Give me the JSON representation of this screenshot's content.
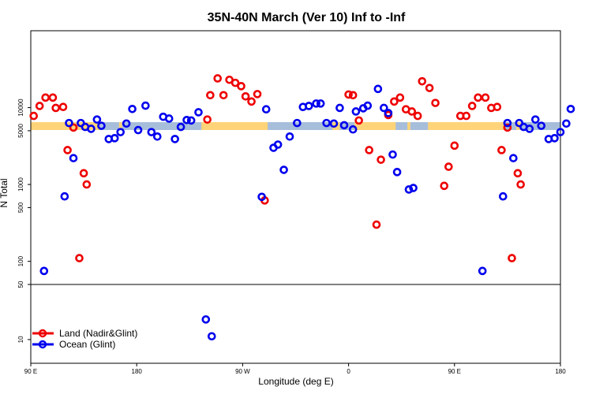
{
  "chart_data": {
    "type": "scatter",
    "title": "35N-40N March (Ver 10)   Inf to -Inf",
    "xlabel": "Longitude (deg E)",
    "ylabel": "N Total",
    "xlim": [
      90,
      450
    ],
    "ylim_upper": [
      50,
      100000
    ],
    "ylim_lower": [
      5,
      50
    ],
    "yscale": "log",
    "x_ticks": [
      {
        "value": 90,
        "label": "90 E"
      },
      {
        "value": 162,
        "label": "180"
      },
      {
        "value": 234,
        "label": "90 W"
      },
      {
        "value": 306,
        "label": "0"
      },
      {
        "value": 378,
        "label": "90 E"
      },
      {
        "value": 450,
        "label": "180"
      }
    ],
    "y_ticks_upper": [
      {
        "value": 50,
        "label": "50"
      },
      {
        "value": 100,
        "label": "100"
      },
      {
        "value": 500,
        "label": "500"
      },
      {
        "value": 1000,
        "label": "1000"
      },
      {
        "value": 5000,
        "label": "5000"
      },
      {
        "value": 10000,
        "label": "10000"
      }
    ],
    "y_ticks_lower": [
      {
        "value": 10,
        "label": "10"
      }
    ],
    "series": [
      {
        "name": "Land (Nadir&Glint)",
        "color": "#ee0000",
        "points": [
          [
            92,
            7800
          ],
          [
            96,
            10500
          ],
          [
            100,
            13500
          ],
          [
            105,
            13500
          ],
          [
            107,
            9900
          ],
          [
            112,
            10200
          ],
          [
            115,
            2800
          ],
          [
            119,
            5500
          ],
          [
            123,
            110
          ],
          [
            126,
            1400
          ],
          [
            128,
            1000
          ],
          [
            210,
            7000
          ],
          [
            212,
            14500
          ],
          [
            217,
            24000
          ],
          [
            221,
            14500
          ],
          [
            225,
            23000
          ],
          [
            229,
            21000
          ],
          [
            233,
            19000
          ],
          [
            236,
            14000
          ],
          [
            240,
            12000
          ],
          [
            244,
            15000
          ],
          [
            249,
            620
          ],
          [
            306,
            14800
          ],
          [
            309,
            14500
          ],
          [
            313,
            6800
          ],
          [
            320,
            2800
          ],
          [
            325,
            300
          ],
          [
            328,
            2100
          ],
          [
            333,
            8000
          ],
          [
            337,
            12000
          ],
          [
            341,
            13500
          ],
          [
            345,
            9500
          ],
          [
            349,
            8900
          ],
          [
            353,
            7800
          ],
          [
            356,
            22000
          ],
          [
            361,
            18000
          ],
          [
            365,
            11500
          ],
          [
            371,
            960
          ],
          [
            374,
            1700
          ],
          [
            378,
            3200
          ],
          [
            382,
            7800
          ],
          [
            386,
            7800
          ],
          [
            390,
            10500
          ],
          [
            394,
            13500
          ],
          [
            399,
            13500
          ],
          [
            403,
            9900
          ],
          [
            407,
            10200
          ],
          [
            410,
            2800
          ],
          [
            414,
            5500
          ],
          [
            417,
            110
          ],
          [
            421,
            1400
          ],
          [
            423,
            1000
          ]
        ]
      },
      {
        "name": "Ocean (Glint)",
        "color": "#0000ee",
        "points": [
          [
            99,
            75
          ],
          [
            113,
            700
          ],
          [
            116,
            6300
          ],
          [
            119,
            2200
          ],
          [
            124,
            6300
          ],
          [
            127,
            5600
          ],
          [
            131,
            5300
          ],
          [
            135,
            7000
          ],
          [
            138,
            5800
          ],
          [
            143,
            3900
          ],
          [
            147,
            4000
          ],
          [
            151,
            4800
          ],
          [
            155,
            6200
          ],
          [
            159,
            9600
          ],
          [
            163,
            5100
          ],
          [
            168,
            10600
          ],
          [
            172,
            4800
          ],
          [
            176,
            4200
          ],
          [
            180,
            7600
          ],
          [
            184,
            7200
          ],
          [
            188,
            3900
          ],
          [
            192,
            5600
          ],
          [
            196,
            6900
          ],
          [
            199,
            6800
          ],
          [
            204,
            8700
          ],
          [
            209,
            18
          ],
          [
            213,
            11
          ],
          [
            247,
            690
          ],
          [
            250,
            9500
          ],
          [
            255,
            3000
          ],
          [
            258,
            3300
          ],
          [
            262,
            1550
          ],
          [
            266,
            4200
          ],
          [
            271,
            6300
          ],
          [
            275,
            10200
          ],
          [
            279,
            10500
          ],
          [
            284,
            11300
          ],
          [
            287,
            11300
          ],
          [
            291,
            6300
          ],
          [
            296,
            6200
          ],
          [
            300,
            9900
          ],
          [
            303,
            5900
          ],
          [
            309,
            5200
          ],
          [
            311,
            8900
          ],
          [
            316,
            9800
          ],
          [
            319,
            10600
          ],
          [
            326,
            17500
          ],
          [
            330,
            9900
          ],
          [
            333,
            8500
          ],
          [
            336,
            2450
          ],
          [
            339,
            1450
          ],
          [
            347,
            860
          ],
          [
            350,
            900
          ],
          [
            397,
            75
          ],
          [
            411,
            700
          ],
          [
            414,
            6300
          ],
          [
            418,
            2200
          ],
          [
            422,
            6300
          ],
          [
            425,
            5600
          ],
          [
            429,
            5300
          ],
          [
            433,
            7000
          ],
          [
            437,
            5800
          ],
          [
            442,
            3900
          ],
          [
            446,
            4000
          ],
          [
            450,
            4800
          ],
          [
            454,
            6200
          ],
          [
            457,
            9600
          ]
        ]
      }
    ],
    "band": {
      "description": "land/ocean mask strip",
      "land_color": "#ffd479",
      "ocean_color": "#a7bedb"
    }
  },
  "legend": {
    "land_label": "Land (Nadir&Glint)",
    "ocean_label": "Ocean (Glint)"
  }
}
